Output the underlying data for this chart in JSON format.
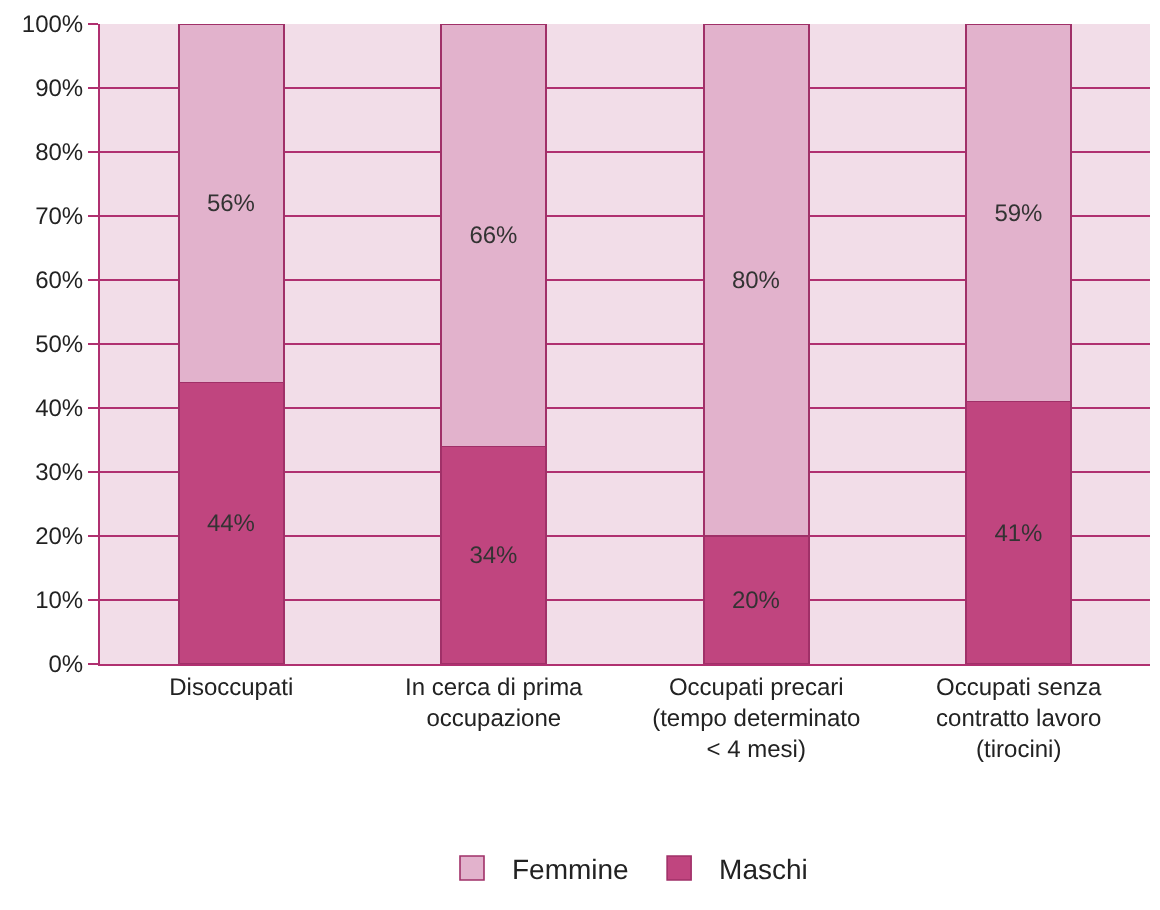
{
  "chart_data": {
    "type": "bar",
    "stacked": true,
    "categories": [
      "Disoccupati",
      "In cerca di prima\noccupazione",
      "Occupati precari\n(tempo determinato\n< 4 mesi)",
      "Occupati senza\ncontratto lavoro\n(tirocini)"
    ],
    "series": [
      {
        "name": "Maschi",
        "color": "#c0457f",
        "values": [
          44,
          34,
          20,
          41
        ],
        "value_labels": [
          "44%",
          "34%",
          "20%",
          "41%"
        ]
      },
      {
        "name": "Femmine",
        "color": "#e2b2cc",
        "values": [
          56,
          66,
          80,
          59
        ],
        "value_labels": [
          "56%",
          "66%",
          "80%",
          "59%"
        ]
      }
    ],
    "ylim": [
      0,
      100
    ],
    "yticks": [
      {
        "value": 0,
        "label": "0%"
      },
      {
        "value": 10,
        "label": "10%"
      },
      {
        "value": 20,
        "label": "20%"
      },
      {
        "value": 30,
        "label": "30%"
      },
      {
        "value": 40,
        "label": "40%"
      },
      {
        "value": 50,
        "label": "50%"
      },
      {
        "value": 60,
        "label": "60%"
      },
      {
        "value": 70,
        "label": "70%"
      },
      {
        "value": 80,
        "label": "80%"
      },
      {
        "value": 90,
        "label": "90%"
      },
      {
        "value": 100,
        "label": "100%"
      }
    ],
    "grid": "y",
    "legend": "bottom"
  }
}
